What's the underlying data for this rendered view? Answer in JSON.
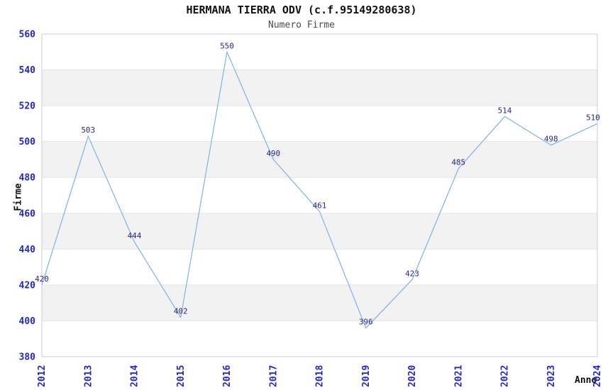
{
  "chart_data": {
    "type": "line",
    "title": "HERMANA TIERRA ODV (c.f.95149280638)",
    "subtitle": "Numero Firme",
    "xlabel": "Anno",
    "ylabel": "Firme",
    "categories": [
      "2012",
      "2013",
      "2014",
      "2015",
      "2016",
      "2017",
      "2018",
      "2019",
      "2020",
      "2021",
      "2022",
      "2023",
      "2024"
    ],
    "series": [
      {
        "name": "Numero Firme",
        "values": [
          420,
          503,
          444,
          402,
          550,
          490,
          461,
          396,
          423,
          485,
          514,
          498,
          510
        ]
      }
    ],
    "data_labels_visible": true,
    "ylim": [
      380,
      560
    ],
    "ytick_step": 20,
    "yticks": [
      380,
      400,
      420,
      440,
      460,
      480,
      500,
      520,
      540,
      560
    ],
    "grid": "horizontal-bands",
    "legend": "none",
    "colors": {
      "line": "#7EB2E8",
      "data_label": "#28288C",
      "tick_label": "#2525CE",
      "title": "#111111",
      "subtitle": "#4D4D4D",
      "band": "#F2F2F2",
      "gridline": "#E5E5E5",
      "border": "#CCCCCC",
      "background": "#FFFFFF"
    }
  }
}
